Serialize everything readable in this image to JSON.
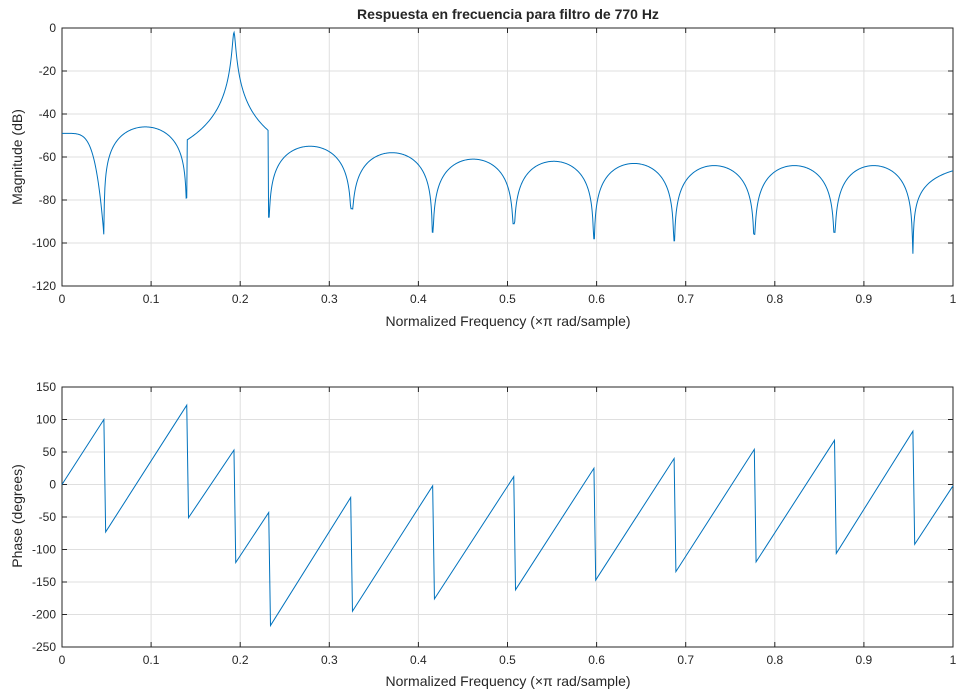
{
  "chart_data": [
    {
      "type": "line",
      "title": "Respuesta en frecuencia para filtro de 770 Hz",
      "xlabel": "Normalized Frequency  (×π rad/sample)",
      "ylabel": "Magnitude (dB)",
      "xlim": [
        0,
        1
      ],
      "ylim": [
        -120,
        0
      ],
      "xticks": [
        "0",
        "0.1",
        "0.2",
        "0.3",
        "0.4",
        "0.5",
        "0.6",
        "0.7",
        "0.8",
        "0.9",
        "1"
      ],
      "yticks": [
        "0",
        "-20",
        "-40",
        "-60",
        "-80",
        "-100",
        "-120"
      ],
      "grid": true,
      "line_color": "#0072BD",
      "peak": {
        "x": 0.193,
        "y": -2
      },
      "zeros": [
        {
          "x": 0.047,
          "y": -96
        },
        {
          "x": 0.14,
          "y": -79
        },
        {
          "x": 0.232,
          "y": -88
        },
        {
          "x": 0.325,
          "y": -84
        },
        {
          "x": 0.416,
          "y": -95
        },
        {
          "x": 0.507,
          "y": -91
        },
        {
          "x": 0.597,
          "y": -98
        },
        {
          "x": 0.687,
          "y": -99
        },
        {
          "x": 0.777,
          "y": -96
        },
        {
          "x": 0.867,
          "y": -95
        },
        {
          "x": 0.955,
          "y": -105
        }
      ],
      "lobes": [
        {
          "x": 0.0,
          "y": -49
        },
        {
          "x": 0.1,
          "y": -46
        },
        {
          "x": 0.268,
          "y": -47
        },
        {
          "x": 0.365,
          "y": -55
        },
        {
          "x": 0.458,
          "y": -58
        },
        {
          "x": 0.55,
          "y": -61
        },
        {
          "x": 0.64,
          "y": -62
        },
        {
          "x": 0.73,
          "y": -63
        },
        {
          "x": 0.82,
          "y": -64
        },
        {
          "x": 0.91,
          "y": -64
        },
        {
          "x": 1.0,
          "y": -64
        }
      ]
    },
    {
      "type": "line",
      "title": "",
      "xlabel": "Normalized Frequency  (×π rad/sample)",
      "ylabel": "Phase (degrees)",
      "xlim": [
        0,
        1
      ],
      "ylim": [
        -250,
        150
      ],
      "xticks": [
        "0",
        "0.1",
        "0.2",
        "0.3",
        "0.4",
        "0.5",
        "0.6",
        "0.7",
        "0.8",
        "0.9",
        "1"
      ],
      "yticks": [
        "150",
        "100",
        "50",
        "0",
        "-50",
        "-100",
        "-150",
        "-200",
        "-250"
      ],
      "grid": true,
      "line_color": "#0072BD",
      "x": [
        0,
        0.047,
        0.049,
        0.14,
        0.142,
        0.193,
        0.195,
        0.232,
        0.234,
        0.324,
        0.326,
        0.416,
        0.418,
        0.507,
        0.509,
        0.597,
        0.599,
        0.687,
        0.689,
        0.777,
        0.779,
        0.867,
        0.869,
        0.955,
        0.957,
        1.0
      ],
      "y": [
        0,
        100,
        -73,
        122,
        -51,
        53,
        -120,
        -43,
        -217,
        -20,
        -195,
        -2,
        -176,
        12,
        -162,
        25,
        -147,
        40,
        -134,
        54,
        -119,
        68,
        -106,
        82,
        -92,
        -2
      ]
    }
  ]
}
